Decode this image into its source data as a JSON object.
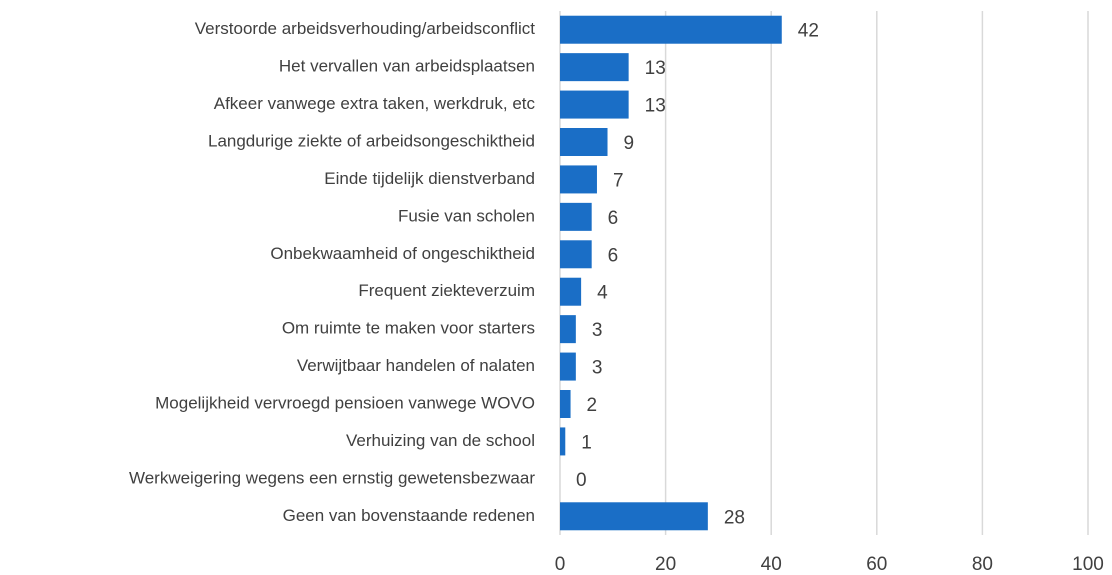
{
  "chart_data": {
    "type": "bar",
    "categories": [
      "Verstoorde arbeidsverhouding/arbeidsconflict",
      "Het vervallen van arbeidsplaatsen",
      "Afkeer vanwege extra taken, werkdruk, etc",
      "Langdurige ziekte of arbeidsongeschiktheid",
      "Einde tijdelijk dienstverband",
      "Fusie van scholen",
      "Onbekwaamheid of ongeschiktheid",
      "Frequent ziekteverzuim",
      "Om ruimte te maken voor starters",
      "Verwijtbaar handelen of nalaten",
      "Mogelijkheid vervroegd pensioen vanwege WOVO",
      "Verhuizing van de school",
      "Werkweigering wegens een ernstig gewetensbezwaar",
      "Geen van bovenstaande redenen"
    ],
    "values": [
      42,
      13,
      13,
      9,
      7,
      6,
      6,
      4,
      3,
      3,
      2,
      1,
      0,
      28
    ],
    "color": "#1a6ec6",
    "xlim": [
      0,
      100
    ],
    "xticks": [
      0,
      20,
      40,
      60,
      80,
      100
    ],
    "grid": true
  }
}
